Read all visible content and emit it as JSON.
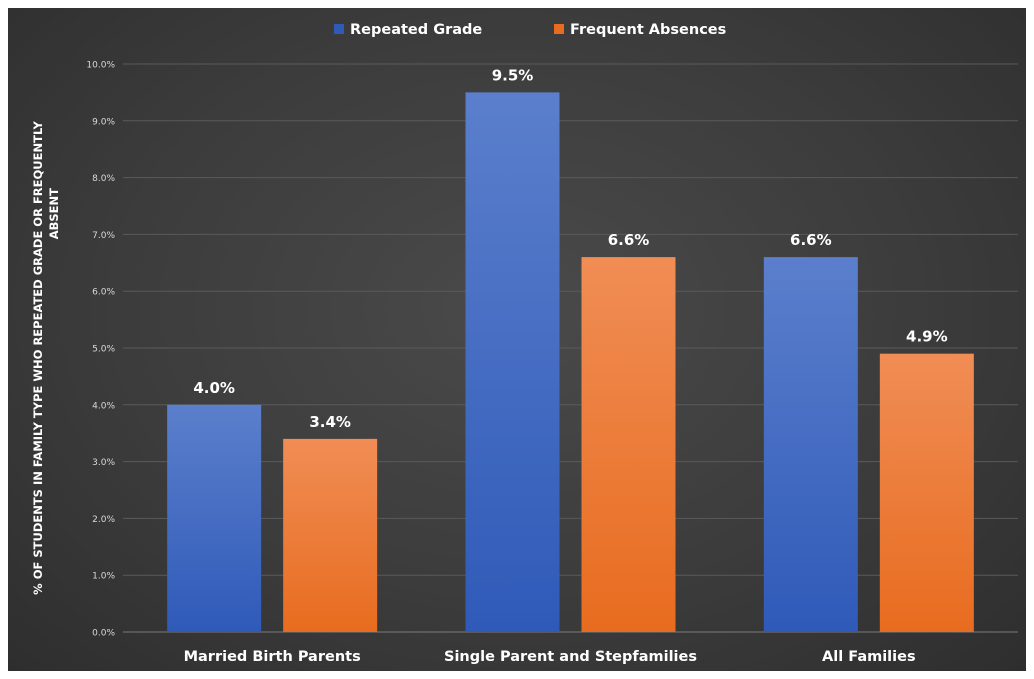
{
  "chart_data": {
    "type": "bar",
    "title": "",
    "xlabel": "",
    "ylabel": "% OF STUDENTS IN FAMILY TYPE WHO REPEATED GRADE OR FREQUENTLY ABSENT",
    "ylabel_lines": [
      "% OF STUDENTS IN FAMILY TYPE WHO REPEATED GRADE OR FREQUENTLY",
      "ABSENT"
    ],
    "categories": [
      "Married Birth Parents",
      "Single Parent and Stepfamilies",
      "All Families"
    ],
    "series": [
      {
        "name": "Repeated Grade",
        "values": [
          4.0,
          9.5,
          6.6
        ],
        "labels": [
          "4.0%",
          "9.5%",
          "6.6%"
        ],
        "color_top": "#5b7fcc",
        "color_bottom": "#2f5ab8"
      },
      {
        "name": "Frequent Absences",
        "values": [
          3.4,
          6.6,
          4.9
        ],
        "labels": [
          "3.4%",
          "6.6%",
          "4.9%"
        ],
        "color_top": "#f08d55",
        "color_bottom": "#e86c1f"
      }
    ],
    "ylim": [
      0,
      10
    ],
    "yticks": [
      "0.0%",
      "1.0%",
      "2.0%",
      "3.0%",
      "4.0%",
      "5.0%",
      "6.0%",
      "7.0%",
      "8.0%",
      "9.0%",
      "10.0%"
    ],
    "grid": true,
    "legend": "top-center",
    "colors": {
      "grid": "#5a5a5a",
      "text": "#ffffff",
      "tick_text": "#d9d9d9"
    }
  }
}
